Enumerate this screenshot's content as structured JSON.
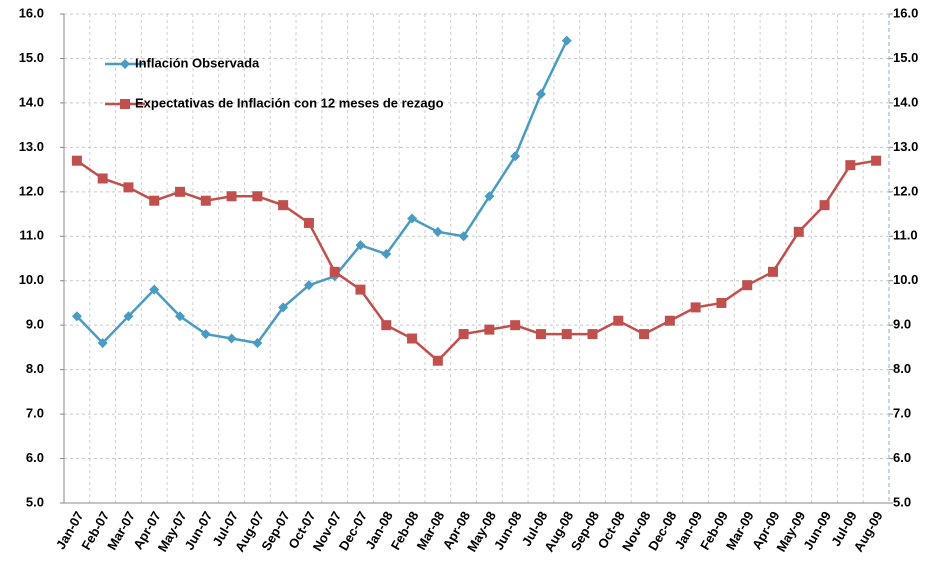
{
  "chart_data": {
    "type": "line",
    "categories": [
      "Jan-07",
      "Feb-07",
      "Mar-07",
      "Apr-07",
      "May-07",
      "Jun-07",
      "Jul-07",
      "Aug-07",
      "Sep-07",
      "Oct-07",
      "Nov-07",
      "Dec-07",
      "Jan-08",
      "Feb-08",
      "Mar-08",
      "Apr-08",
      "May-08",
      "Jun-08",
      "Jul-08",
      "Aug-08",
      "Sep-08",
      "Oct-08",
      "Nov-08",
      "Dec-08",
      "Jan-09",
      "Feb-09",
      "Mar-09",
      "Apr-09",
      "May-09",
      "Jun-09",
      "Jul-09",
      "Aug-09"
    ],
    "series": [
      {
        "name": "Inflación Observada",
        "color": "#4a9bc2",
        "marker": "diamond",
        "values": [
          9.2,
          8.6,
          9.2,
          9.8,
          9.2,
          8.8,
          8.7,
          8.6,
          9.4,
          9.9,
          10.1,
          10.8,
          10.6,
          11.4,
          11.1,
          11.0,
          11.9,
          12.8,
          14.2,
          15.4,
          null,
          null,
          null,
          null,
          null,
          null,
          null,
          null,
          null,
          null,
          null,
          null
        ]
      },
      {
        "name": "Expectativas de Inflación con 12 meses de rezago",
        "color": "#c0504d",
        "marker": "square",
        "values": [
          12.7,
          12.3,
          12.1,
          11.8,
          12.0,
          11.8,
          11.9,
          11.9,
          11.7,
          11.3,
          10.2,
          9.8,
          9.0,
          8.7,
          8.2,
          8.8,
          8.9,
          9.0,
          8.8,
          8.8,
          8.8,
          9.1,
          8.8,
          9.1,
          9.4,
          9.5,
          9.9,
          10.2,
          11.1,
          11.7,
          12.6,
          12.7
        ]
      }
    ],
    "ylim": [
      5,
      16
    ],
    "yticks": [
      {
        "value": 5,
        "label": "5.0"
      },
      {
        "value": 6,
        "label": "6.0"
      },
      {
        "value": 7,
        "label": "7.0"
      },
      {
        "value": 8,
        "label": "8.0"
      },
      {
        "value": 9,
        "label": "9.0"
      },
      {
        "value": 10,
        "label": "10.0"
      },
      {
        "value": 11,
        "label": "11.0"
      },
      {
        "value": 12,
        "label": "12.0"
      },
      {
        "value": 13,
        "label": "13.0"
      },
      {
        "value": 14,
        "label": "14.0"
      },
      {
        "value": 15,
        "label": "15.0"
      },
      {
        "value": 16,
        "label": "16.0"
      }
    ],
    "y2lim": [
      5,
      16
    ],
    "y2ticks": [
      {
        "value": 5,
        "label": "5.0"
      },
      {
        "value": 6,
        "label": "6.0"
      },
      {
        "value": 7,
        "label": "7.0"
      },
      {
        "value": 8,
        "label": "8.0"
      },
      {
        "value": 9,
        "label": "9.0"
      },
      {
        "value": 10,
        "label": "10.0"
      },
      {
        "value": 11,
        "label": "11.0"
      },
      {
        "value": 12,
        "label": "12.0"
      },
      {
        "value": 13,
        "label": "13.0"
      },
      {
        "value": 14,
        "label": "14.0"
      },
      {
        "value": 15,
        "label": "15.0"
      },
      {
        "value": 16,
        "label": "16.0"
      }
    ],
    "grid": true,
    "legend": "upper left"
  }
}
